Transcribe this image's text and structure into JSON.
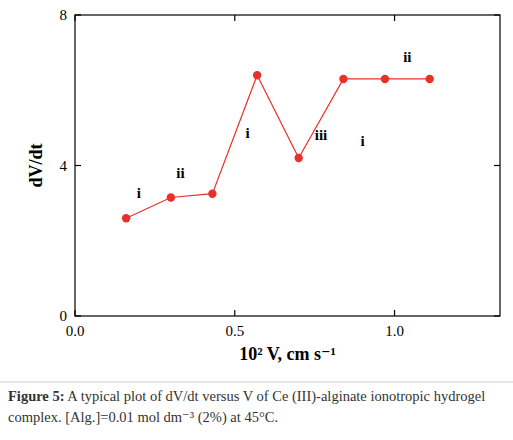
{
  "chart_data": {
    "type": "line",
    "x_label": "10² V, cm s⁻¹",
    "y_label": "dV/dt",
    "x": [
      0.16,
      0.3,
      0.43,
      0.57,
      0.7,
      0.84,
      0.97,
      1.11
    ],
    "values": [
      2.6,
      3.15,
      3.25,
      6.4,
      4.2,
      6.3,
      6.3,
      6.3
    ],
    "color": "#e8302c",
    "marker": "circle",
    "line_style": "solid",
    "xlim": [
      0,
      1.33
    ],
    "xticks": [
      {
        "value": 0,
        "label": "0.0"
      },
      {
        "value": 0.5,
        "label": "0.5"
      },
      {
        "value": 1,
        "label": "1.0"
      }
    ],
    "ylim": [
      0,
      8
    ],
    "yticks": [
      0,
      4,
      8
    ],
    "grid": false,
    "annotations": [
      {
        "text": "i",
        "x": 0.2,
        "y": 3.14
      },
      {
        "text": "ii",
        "x": 0.33,
        "y": 3.67
      },
      {
        "text": "i",
        "x": 0.54,
        "y": 4.73
      },
      {
        "text": "iii",
        "x": 0.77,
        "y": 4.68
      },
      {
        "text": "i",
        "x": 0.9,
        "y": 4.52
      },
      {
        "text": "ii",
        "x": 1.04,
        "y": 6.76
      }
    ],
    "caption_label": "Figure 5:",
    "caption": "A typical plot of dV/dt versus V of Ce (III)-alginate ionotropic hydrogel complex. [Alg.]=0.01 mol dm⁻³ (2%) at 45°C."
  }
}
